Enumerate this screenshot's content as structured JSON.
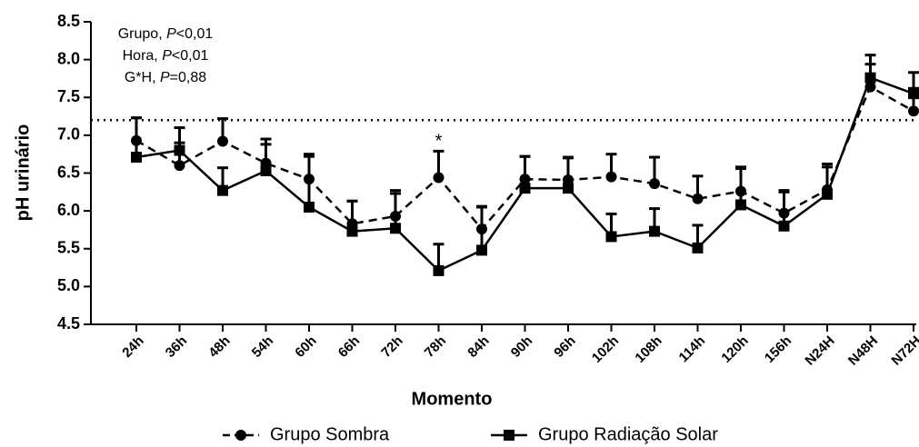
{
  "chart_data": {
    "type": "line",
    "xlabel": "Momento",
    "ylabel": "pH urinário",
    "categories": [
      "24h",
      "36h",
      "48h",
      "54h",
      "60h",
      "66h",
      "72h",
      "78h",
      "84h",
      "90h",
      "96h",
      "102h",
      "108h",
      "114h",
      "120h",
      "156h",
      "N24H",
      "N48H",
      "N72H"
    ],
    "series": [
      {
        "name": "Grupo Sombra",
        "color": "#000000",
        "marker": "circle",
        "dashed": true,
        "values": [
          6.93,
          6.6,
          6.92,
          6.63,
          6.42,
          5.83,
          5.93,
          6.44,
          5.76,
          6.42,
          6.41,
          6.45,
          6.36,
          6.16,
          6.26,
          5.97,
          6.28,
          7.64,
          7.32
        ],
        "errors": [
          0.3,
          0.3,
          0.3,
          0.25,
          0.3,
          0.3,
          0.3,
          0.35,
          0.3,
          0.3,
          0.3,
          0.3,
          0.35,
          0.3,
          0.3,
          0.3,
          0.3,
          0.3,
          0.3
        ]
      },
      {
        "name": "Grupo Radiação Solar",
        "color": "#000000",
        "marker": "square",
        "dashed": false,
        "values": [
          6.71,
          6.8,
          6.27,
          6.53,
          6.05,
          5.73,
          5.77,
          5.21,
          5.48,
          6.3,
          6.3,
          5.66,
          5.73,
          5.51,
          6.08,
          5.8,
          6.22,
          7.76,
          7.55
        ],
        "errors": [
          0.52,
          0.3,
          0.3,
          0.42,
          0.7,
          0.4,
          0.5,
          0.35,
          0.57,
          0.42,
          0.4,
          0.3,
          0.3,
          0.3,
          0.5,
          0.45,
          0.4,
          0.3,
          0.28
        ]
      }
    ],
    "ylim": [
      4.5,
      8.5
    ],
    "yticks": [
      4.5,
      {
        "value": 5,
        "label": "5.0"
      },
      5.5,
      {
        "value": 6,
        "label": "6.0"
      },
      6.5,
      {
        "value": 7,
        "label": "7.0"
      },
      7.5,
      {
        "value": 8,
        "label": "8.0"
      },
      8.5
    ],
    "reference_line": 7.2,
    "annotations": [
      [
        "Grupo, ",
        "P",
        "<0,01"
      ],
      [
        "Hora, ",
        "P",
        "<0,01"
      ],
      [
        "G*H, ",
        "P",
        "=0,88"
      ]
    ],
    "marker_annotation": {
      "text": "*",
      "category": 7
    },
    "legend": "bottom"
  }
}
